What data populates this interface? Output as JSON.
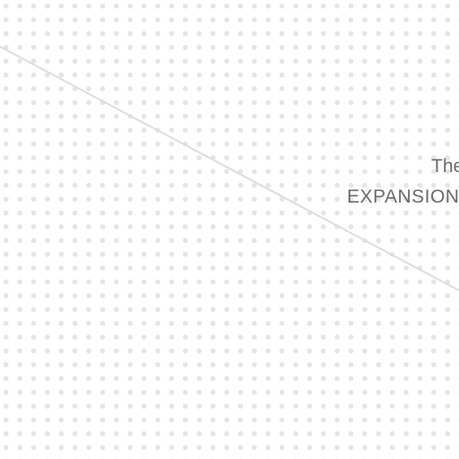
{
  "background": {
    "color": "#ffffff",
    "dot_color": "#e6e6e0",
    "line_color": "#dedede"
  },
  "headline": {
    "top_text": "The",
    "main_text": "EXPANSION",
    "color": "#6b6b6b"
  }
}
